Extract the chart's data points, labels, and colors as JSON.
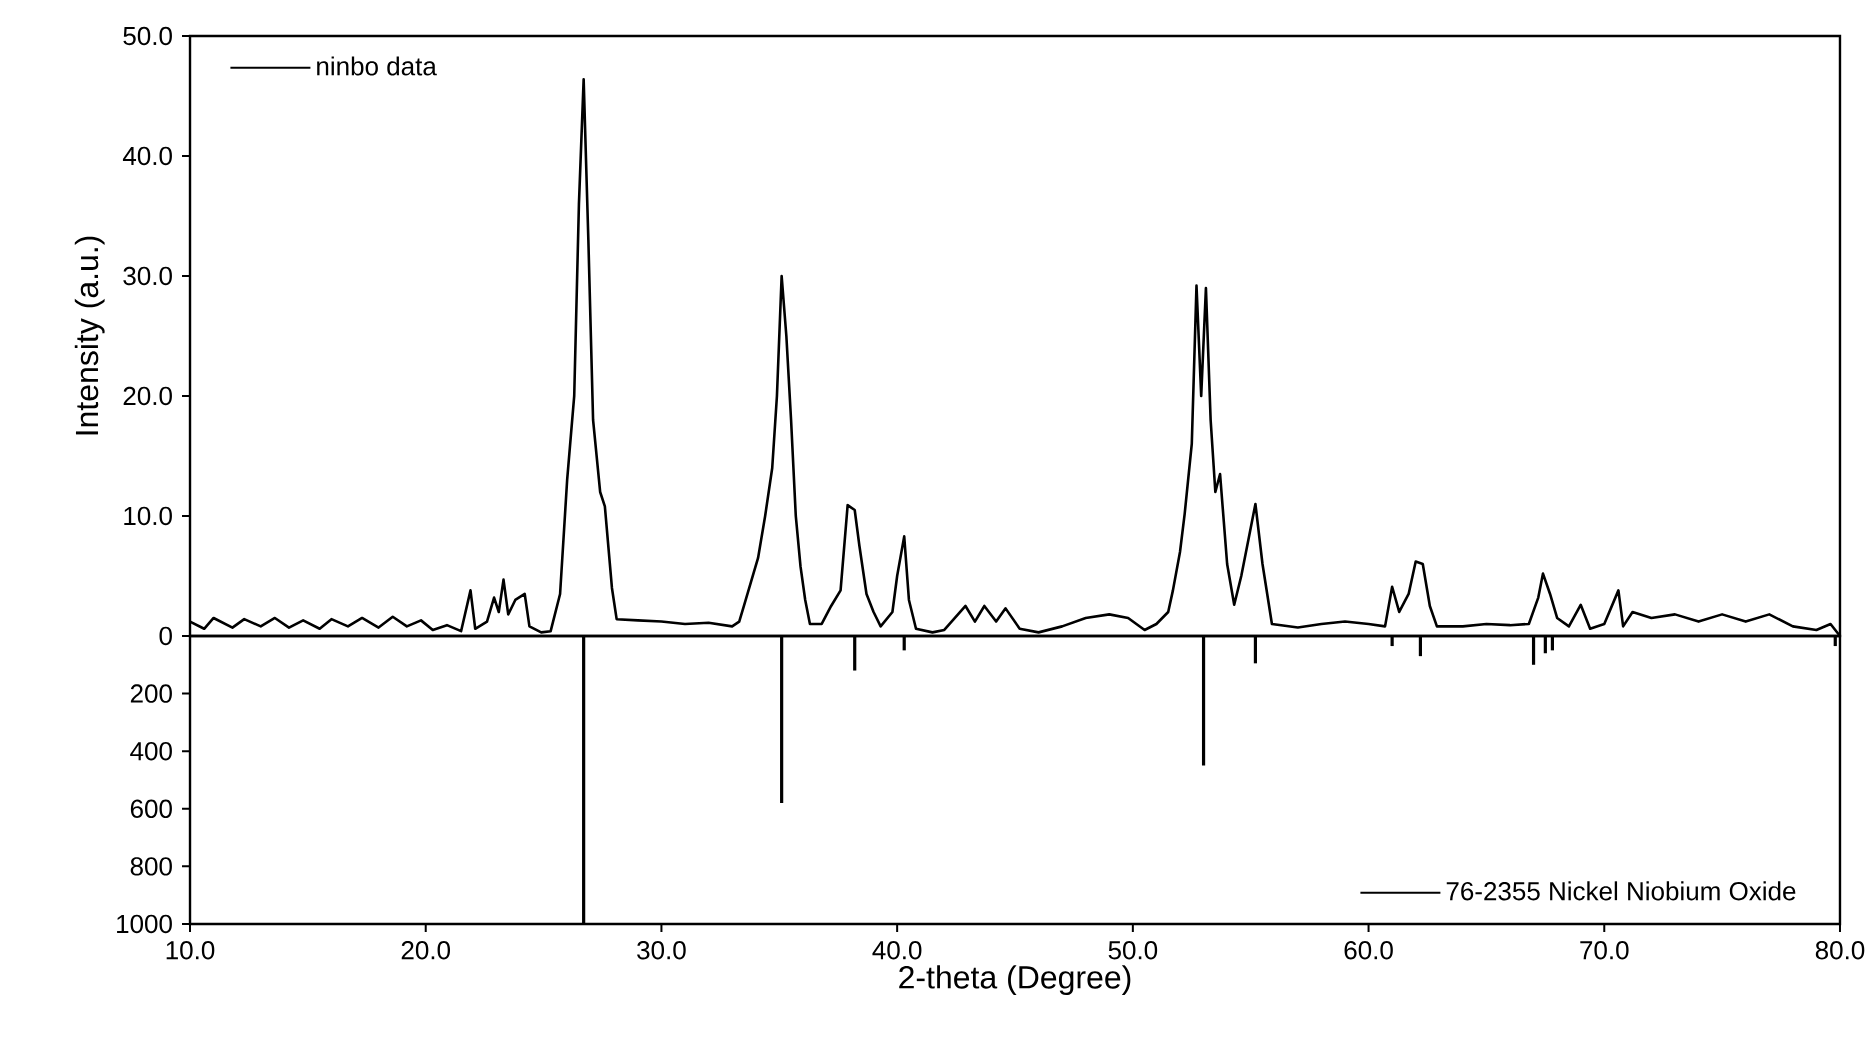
{
  "chart_data": [
    {
      "type": "line",
      "ylabel": "Intensity (a.u.)",
      "xlim": [
        10,
        80
      ],
      "ylim": [
        0,
        50
      ],
      "tick_labels": "y",
      "legend": "top left",
      "yticks": [
        0,
        {
          "value": 10,
          "label": "10.0"
        },
        {
          "value": 20,
          "label": "20.0"
        },
        {
          "value": 30,
          "label": "30.0"
        },
        {
          "value": 40,
          "label": "40.0"
        },
        {
          "value": 50,
          "label": "50.0"
        }
      ],
      "x": [
        10.0,
        10.6,
        11.0,
        11.8,
        12.3,
        13.0,
        13.6,
        14.2,
        14.8,
        15.5,
        16.0,
        16.7,
        17.3,
        18.0,
        18.6,
        19.2,
        19.8,
        20.3,
        20.9,
        21.5,
        21.9,
        22.1,
        22.6,
        22.9,
        23.1,
        23.3,
        23.5,
        23.8,
        24.2,
        24.4,
        24.9,
        25.3,
        25.7,
        26.0,
        26.3,
        26.5,
        26.7,
        26.9,
        27.1,
        27.4,
        27.6,
        27.9,
        28.1,
        29.0,
        30.0,
        31.0,
        32.0,
        33.0,
        33.3,
        33.5,
        33.8,
        34.1,
        34.4,
        34.7,
        34.9,
        35.1,
        35.3,
        35.5,
        35.7,
        35.9,
        36.1,
        36.3,
        36.8,
        37.2,
        37.6,
        37.9,
        38.2,
        38.4,
        38.7,
        39.0,
        39.3,
        39.8,
        40.0,
        40.3,
        40.5,
        40.8,
        41.5,
        42.0,
        42.9,
        43.3,
        43.7,
        44.2,
        44.6,
        45.2,
        46.0,
        47.0,
        48.0,
        49.0,
        49.8,
        50.5,
        51.0,
        51.5,
        51.7,
        52.0,
        52.2,
        52.5,
        52.7,
        52.9,
        53.1,
        53.3,
        53.5,
        53.7,
        54.0,
        54.3,
        54.6,
        55.0,
        55.2,
        55.5,
        55.9,
        57.0,
        58.0,
        59.0,
        60.0,
        60.7,
        61.0,
        61.3,
        61.7,
        62.0,
        62.3,
        62.6,
        62.9,
        64.0,
        65.0,
        66.0,
        66.8,
        67.2,
        67.4,
        67.7,
        68.0,
        68.5,
        69.0,
        69.4,
        70.0,
        70.6,
        70.8,
        71.2,
        72.0,
        73.0,
        74.0,
        75.0,
        76.0,
        77.0,
        78.0,
        79.0,
        79.6,
        80.0
      ],
      "series": [
        {
          "name": "ninbo data",
          "color": "#000000",
          "values": [
            1.2,
            0.6,
            1.5,
            0.7,
            1.4,
            0.8,
            1.5,
            0.7,
            1.3,
            0.6,
            1.4,
            0.8,
            1.5,
            0.7,
            1.6,
            0.8,
            1.3,
            0.5,
            0.9,
            0.4,
            3.8,
            0.6,
            1.2,
            3.2,
            2.0,
            4.7,
            1.8,
            3.0,
            3.5,
            0.8,
            0.3,
            0.4,
            3.5,
            13.0,
            20.0,
            36.0,
            46.4,
            33.0,
            18.0,
            12.0,
            10.8,
            4.0,
            1.4,
            1.3,
            1.2,
            1.0,
            1.1,
            0.8,
            1.2,
            2.5,
            4.5,
            6.5,
            10.0,
            14.0,
            20.0,
            30.0,
            25.0,
            18.0,
            10.0,
            5.8,
            3.0,
            1.0,
            1.0,
            2.5,
            3.8,
            10.9,
            10.5,
            7.5,
            3.5,
            2.0,
            0.8,
            2.0,
            5.0,
            8.3,
            3.0,
            0.6,
            0.3,
            0.5,
            2.5,
            1.2,
            2.5,
            1.2,
            2.3,
            0.6,
            0.3,
            0.8,
            1.5,
            1.8,
            1.5,
            0.5,
            1.0,
            2.0,
            3.8,
            7.0,
            10.2,
            16.0,
            29.2,
            20.0,
            29.0,
            18.0,
            12.0,
            13.5,
            6.0,
            2.6,
            5.0,
            9.0,
            11.0,
            6.0,
            1.0,
            0.7,
            1.0,
            1.2,
            1.0,
            0.8,
            4.1,
            2.0,
            3.5,
            6.2,
            6.0,
            2.5,
            0.8,
            0.8,
            1.0,
            0.9,
            1.0,
            3.2,
            5.2,
            3.5,
            1.5,
            0.8,
            2.6,
            0.6,
            1.0,
            3.8,
            0.8,
            2.0,
            1.5,
            1.8,
            1.2,
            1.8,
            1.2,
            1.8,
            0.8,
            0.5,
            1.0,
            0.0
          ]
        }
      ]
    },
    {
      "type": "bar",
      "xlabel": "2-theta (Degree)",
      "xlim": [
        10,
        80
      ],
      "ylim": [
        1000,
        0
      ],
      "legend": "bottom right",
      "xticks": [
        {
          "value": 10,
          "label": "10.0"
        },
        {
          "value": 20,
          "label": "20.0"
        },
        {
          "value": 30,
          "label": "30.0"
        },
        {
          "value": 40,
          "label": "40.0"
        },
        {
          "value": 50,
          "label": "50.0"
        },
        {
          "value": 60,
          "label": "60.0"
        },
        {
          "value": 70,
          "label": "70.0"
        },
        {
          "value": 80,
          "label": "80.0"
        }
      ],
      "yticks": [
        200,
        400,
        600,
        800,
        1000
      ],
      "x": [
        26.7,
        35.1,
        38.2,
        40.3,
        53.0,
        55.2,
        61.0,
        62.2,
        67.0,
        67.5,
        67.8,
        79.8
      ],
      "series": [
        {
          "name": "76-2355 Nickel Niobium Oxide",
          "color": "#000000",
          "values": [
            1000,
            580,
            120,
            50,
            450,
            95,
            35,
            70,
            100,
            60,
            50,
            35
          ]
        }
      ]
    }
  ]
}
